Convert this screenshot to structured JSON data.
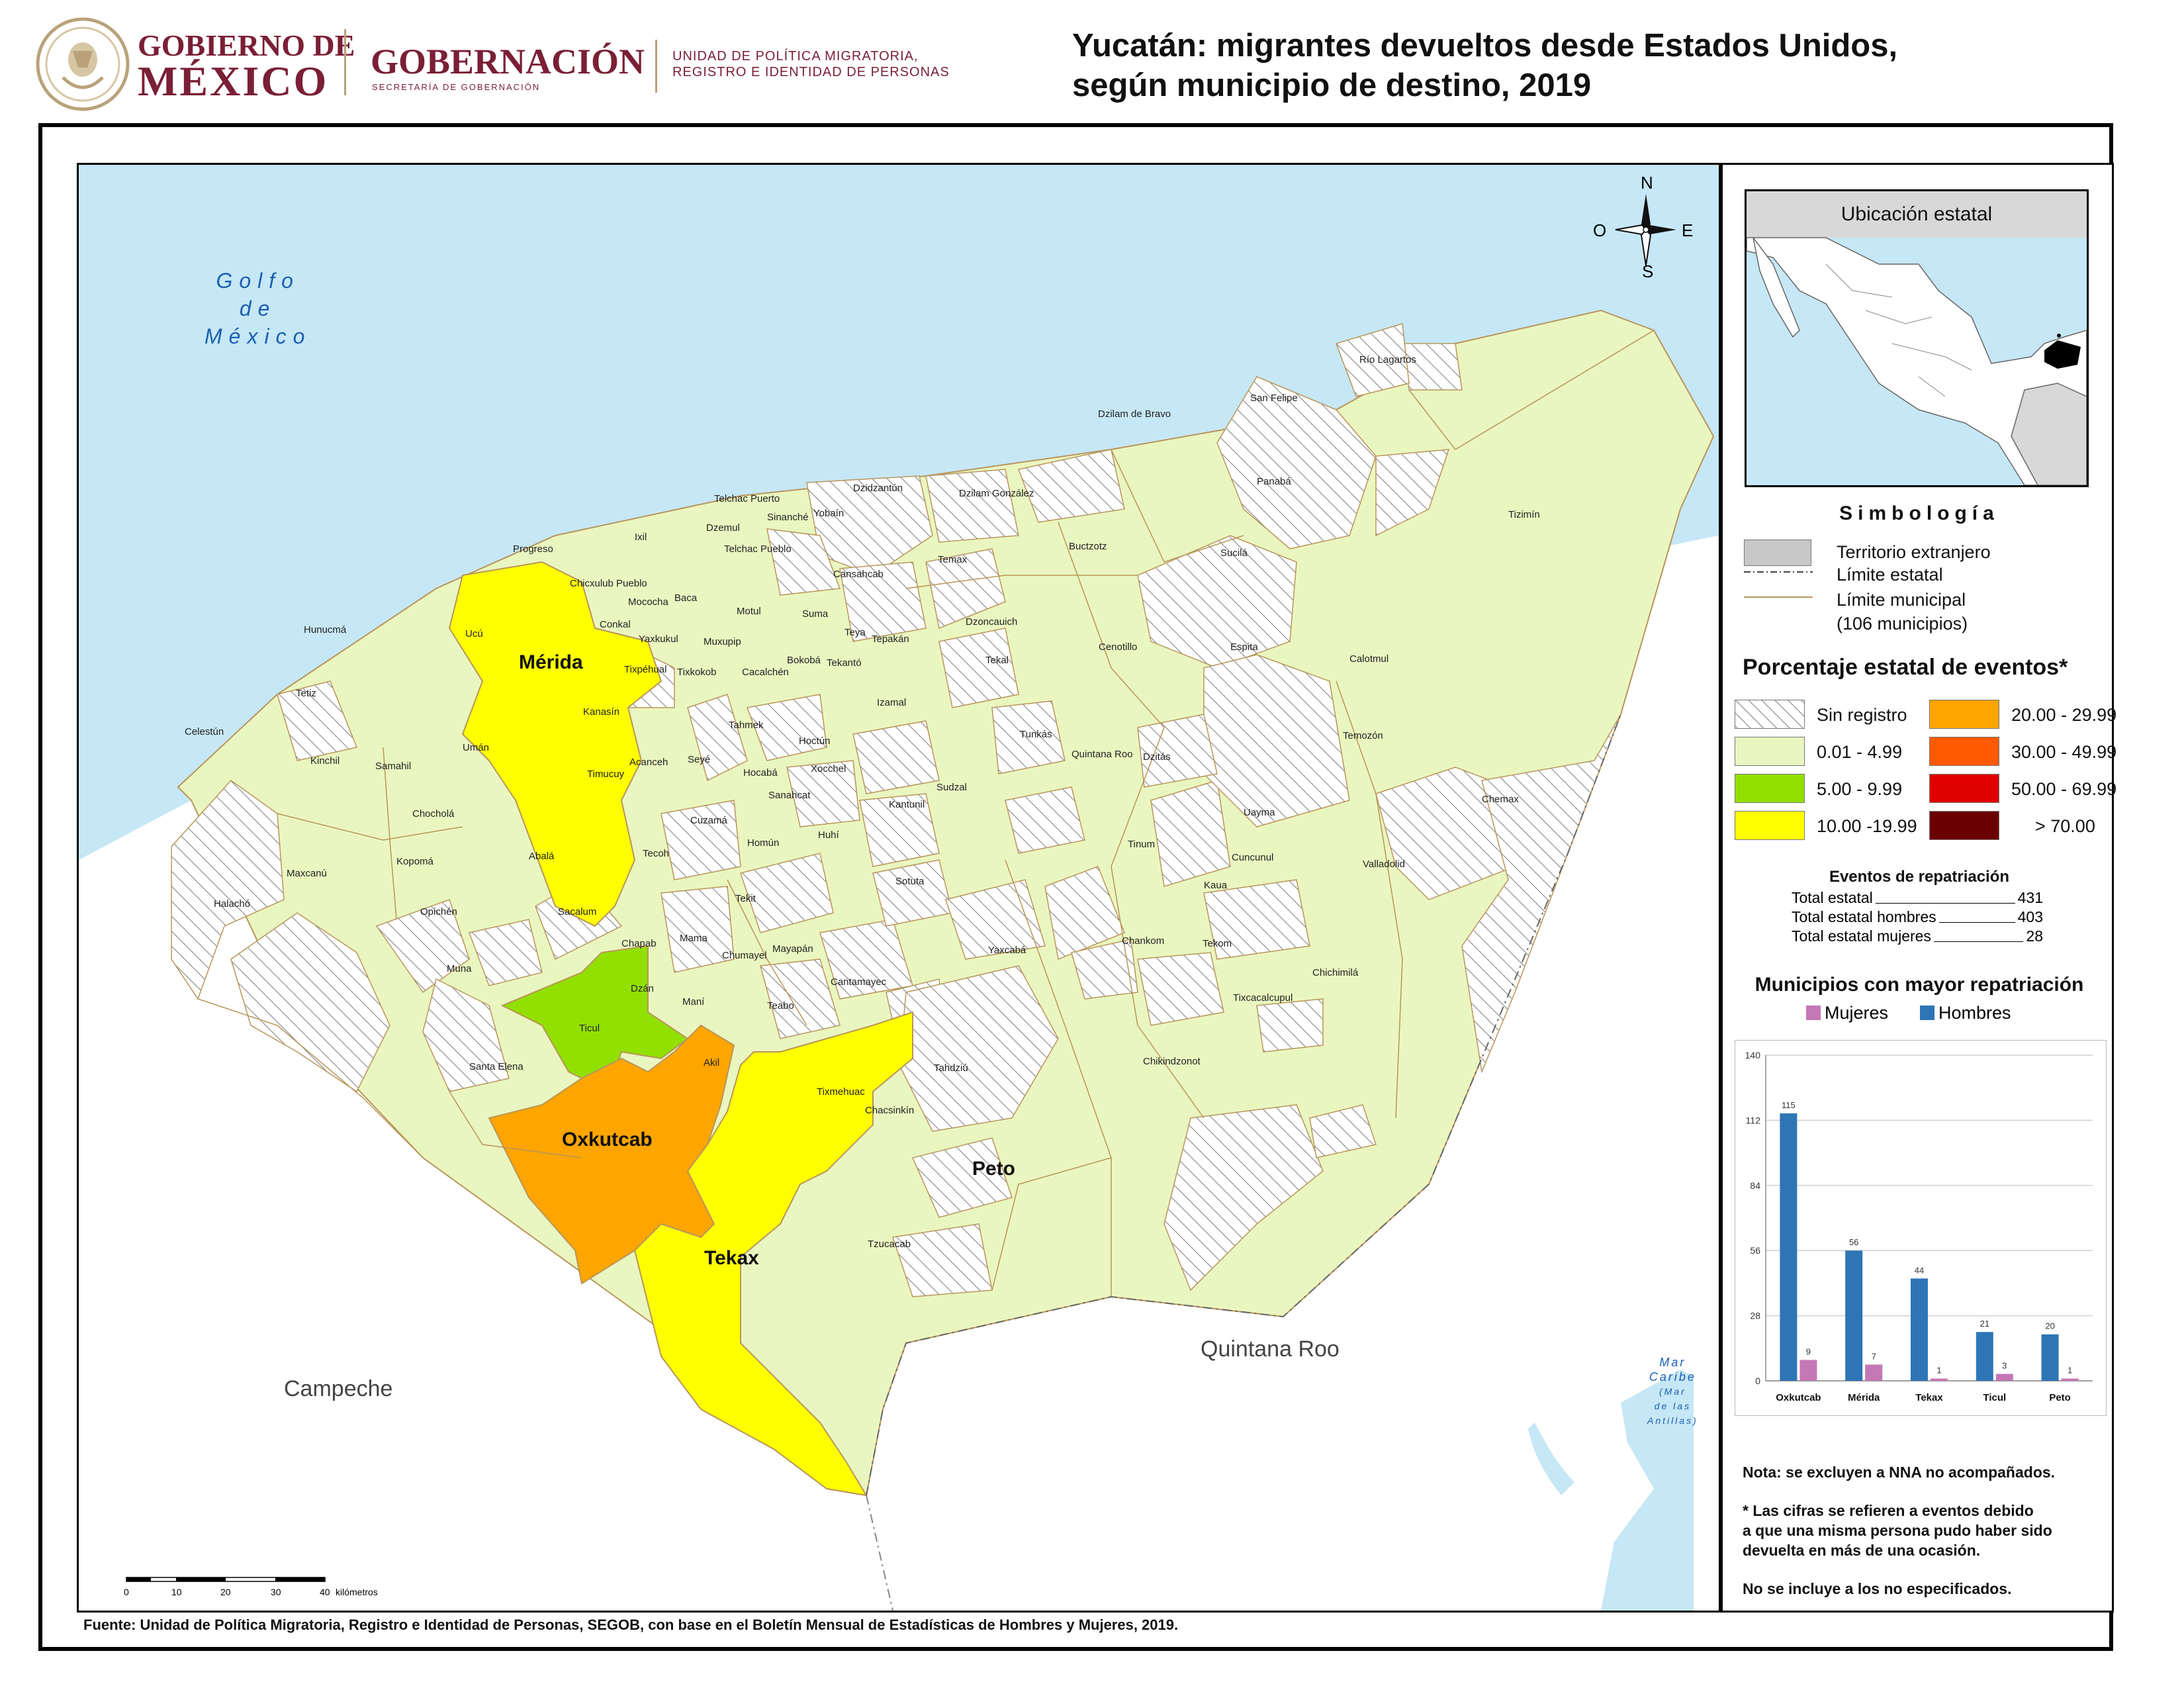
{
  "header": {
    "gov_line1": "GOBIERNO DE",
    "gov_line2": "MÉXICO",
    "secretaria": "GOBERNACIÓN",
    "secretaria_sub": "SECRETARÍA DE GOBERNACIÓN",
    "unidad_line1": "UNIDAD DE POLÍTICA MIGRATORIA,",
    "unidad_line2": "REGISTRO E IDENTIDAD DE PERSONAS",
    "title_line1": "Yucatán: migrantes devueltos desde Estados Unidos,",
    "title_line2": "según municipio de destino, 2019"
  },
  "compass": {
    "n": "N",
    "s": "S",
    "e": "E",
    "o": "O"
  },
  "map": {
    "colors": {
      "water": "#c6e7f5",
      "low": "#eaf6c0",
      "mid": "#92e000",
      "high": "#ffff00",
      "orange": "#ffa500",
      "foreign": "#ffffff",
      "border": "#b8955a"
    },
    "sea_gulf": [
      "Golfo",
      "de",
      "México"
    ],
    "sea_caribe": [
      "Mar",
      "Caribe",
      "(Mar",
      "de las",
      "Antillas)"
    ],
    "neighbor_campeche": "Campeche",
    "neighbor_qroo": "Quintana Roo",
    "highlighted": {
      "merida": "Mérida",
      "oxkutcab": "Oxkutcab",
      "tekax": "Tekax",
      "peto": "Peto"
    },
    "municipios": [
      "Río Lagartos",
      "San Felipe",
      "Dzilam de Bravo",
      "Panabá",
      "Tizimín",
      "Dzidzantún",
      "Dzilam González",
      "Telchac Puerto",
      "Sinanché",
      "Yobaín",
      "Dzemul",
      "Telchac Pueblo",
      "Ixil",
      "Progreso",
      "Chicxulub Pueblo",
      "Mococha",
      "Baca",
      "Temax",
      "Buctzotz",
      "Sucilá",
      "Cansahcab",
      "Motul",
      "Suma",
      "Dzoncauich",
      "Conkal",
      "Yaxkukul",
      "Muxupip",
      "Teya",
      "Tepakán",
      "Hunucmá",
      "Ucú",
      "Tixpéhual",
      "Tixkokob",
      "Cacalchén",
      "Bokobá",
      "Tekantó",
      "Tekal",
      "Cenotillo",
      "Espita",
      "Calotmul",
      "Tetiz",
      "Kanasín",
      "Tahmek",
      "Izamal",
      "Celestún",
      "Umán",
      "Hoctún",
      "Tunkás",
      "Quintana Roo",
      "Dzitás",
      "Temozón",
      "Kinchil",
      "Samahil",
      "Acanceh",
      "Seyé",
      "Timucuy",
      "Hocabá",
      "Xocchel",
      "Sanahcat",
      "Sudzal",
      "Chemax",
      "Chocholá",
      "Cuzamá",
      "Kantunil",
      "Uayma",
      "Abalá",
      "Tecoh",
      "Homún",
      "Huhí",
      "Tinum",
      "Cuncunul",
      "Kopomá",
      "Valladolid",
      "Maxcanú",
      "Sotuta",
      "Kaua",
      "Halachó",
      "Tekit",
      "Opichén",
      "Sacalum",
      "Chankom",
      "Tekom",
      "Chapab",
      "Mama",
      "Yaxcabá",
      "Chumayel",
      "Mayapán",
      "Chichimilá",
      "Muna",
      "Cantamayec",
      "Dzán",
      "Maní",
      "Teabo",
      "Tixcacalcupul",
      "Ticul",
      "Santa Elena",
      "Akil",
      "Chikindzonot",
      "Tixmehuac",
      "Tahdziú",
      "Chacsinkín",
      "Tzucacab"
    ]
  },
  "scale": {
    "ticks": [
      "0",
      "10",
      "20",
      "30",
      "40"
    ],
    "unit": "kilómetros"
  },
  "inset": {
    "title": "Ubicación estatal"
  },
  "legend": {
    "title": "Simbología",
    "items": {
      "territorio": "Territorio extranjero",
      "limite_estatal": "Límite estatal",
      "limite_municipal": "Límite municipal",
      "municipios_count": "(106 municipios)"
    },
    "classes_title": "Porcentaje estatal de eventos*",
    "classes": [
      {
        "label": "Sin registro",
        "color": "hatch"
      },
      {
        "label": "0.01  - 4.99",
        "color": "#eaf6c0"
      },
      {
        "label": "5.00  - 9.99",
        "color": "#92e000"
      },
      {
        "label": "10.00 -19.99",
        "color": "#ffff00"
      },
      {
        "label": "20.00 - 29.99",
        "color": "#ffa500"
      },
      {
        "label": "30.00 - 49.99",
        "color": "#ff5a00"
      },
      {
        "label": "50.00 - 69.99",
        "color": "#e00000"
      },
      {
        "label": "> 70.00",
        "color": "#6b0000"
      }
    ]
  },
  "eventos": {
    "title": "Eventos de repatriación",
    "rows": [
      {
        "label": "Total estatal",
        "value": "431"
      },
      {
        "label": "Total estatal hombres",
        "value": "403"
      },
      {
        "label": "Total estatal mujeres",
        "value": "28"
      }
    ]
  },
  "chart_data": {
    "type": "bar",
    "title": "Municipios con mayor repatriación",
    "categories": [
      "Oxkutcab",
      "Mérida",
      "Tekax",
      "Ticul",
      "Peto"
    ],
    "series": [
      {
        "name": "Hombres",
        "values": [
          115,
          56,
          44,
          21,
          20
        ],
        "color": "#2e75b6"
      },
      {
        "name": "Mujeres",
        "values": [
          9,
          7,
          1,
          3,
          1
        ],
        "color": "#c478b5"
      }
    ],
    "legend_order": [
      "Mujeres",
      "Hombres"
    ],
    "yticks": [
      "0",
      "28",
      "56",
      "84",
      "112",
      "140"
    ],
    "ylim": [
      0,
      140
    ],
    "grid": true
  },
  "notes": {
    "nota": "Nota: se excluyen a NNA no acompañados.",
    "asterisco": [
      "* Las cifras se refieren a eventos debido",
      "a que una misma persona pudo haber sido",
      "devuelta en más de una ocasión."
    ],
    "no_especificados": "No se incluye a los no especificados."
  },
  "source": "Fuente: Unidad de Política Migratoria, Registro e Identidad de Personas, SEGOB, con base en el Boletín Mensual de Estadísticas de Hombres y Mujeres, 2019."
}
